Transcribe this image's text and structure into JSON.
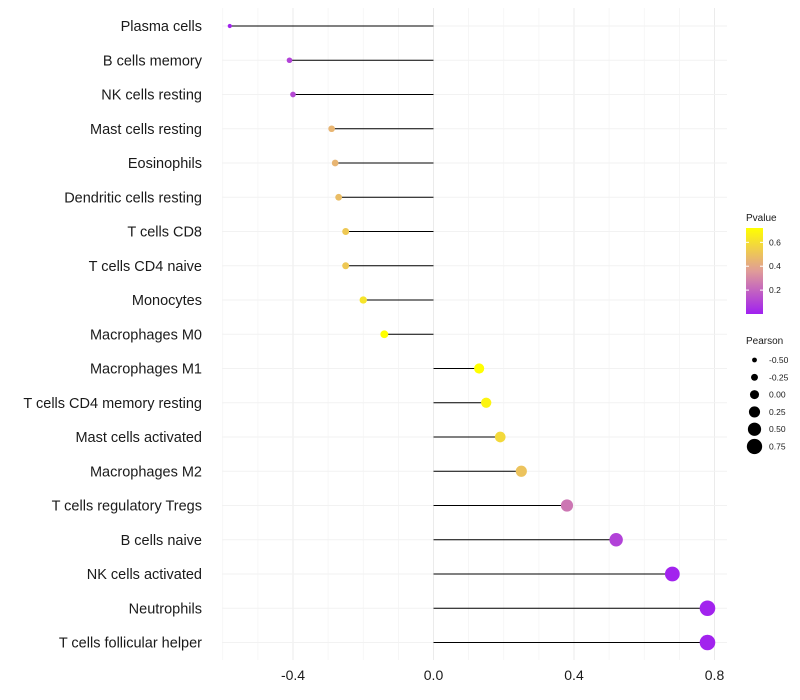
{
  "chart_data": {
    "type": "lollipop",
    "title": "",
    "xlabel": "",
    "ylabel": "",
    "xlim": [
      -0.6,
      0.8
    ],
    "x_ticks": [
      -0.4,
      0.0,
      0.4,
      0.8
    ],
    "x_tick_labels": [
      "-0.4",
      "0.0",
      "0.4",
      "0.8"
    ],
    "grid": true,
    "categories": [
      "Plasma cells",
      "B cells memory",
      "NK cells resting",
      "Mast cells resting",
      "Eosinophils",
      "Dendritic cells resting",
      "T cells CD8",
      "T cells CD4 naive",
      "Monocytes",
      "Macrophages M0",
      "Macrophages M1",
      "T cells CD4 memory resting",
      "Mast cells activated",
      "Macrophages M2",
      "T cells regulatory  Tregs ",
      "B cells naive",
      "NK cells activated",
      "Neutrophils",
      "T cells follicular helper"
    ],
    "pearson": [
      -0.58,
      -0.41,
      -0.4,
      -0.29,
      -0.28,
      -0.27,
      -0.25,
      -0.25,
      -0.2,
      -0.14,
      0.13,
      0.15,
      0.19,
      0.25,
      0.38,
      0.52,
      0.68,
      0.78,
      0.78
    ],
    "pvalue": [
      0.01,
      0.1,
      0.12,
      0.45,
      0.45,
      0.48,
      0.52,
      0.52,
      0.62,
      0.72,
      0.72,
      0.68,
      0.58,
      0.5,
      0.25,
      0.1,
      0.01,
      0.01,
      0.01
    ],
    "legend_pvalue": {
      "title": "Pvalue",
      "range": [
        0.0,
        0.72
      ],
      "ticks": [
        0.2,
        0.4,
        0.6
      ],
      "tick_labels": [
        "0.2",
        "0.4",
        "0.6"
      ],
      "color_low": "#a020f0",
      "color_mid": "#e09c98",
      "color_high": "#ffff00"
    },
    "legend_pearson": {
      "title": "Pearson",
      "values": [
        -0.5,
        -0.25,
        0.0,
        0.25,
        0.5,
        0.75
      ],
      "labels": [
        "-0.50",
        "-0.25",
        "0.00",
        "0.25",
        "0.50",
        "0.75"
      ]
    },
    "legend_placement": "right"
  }
}
